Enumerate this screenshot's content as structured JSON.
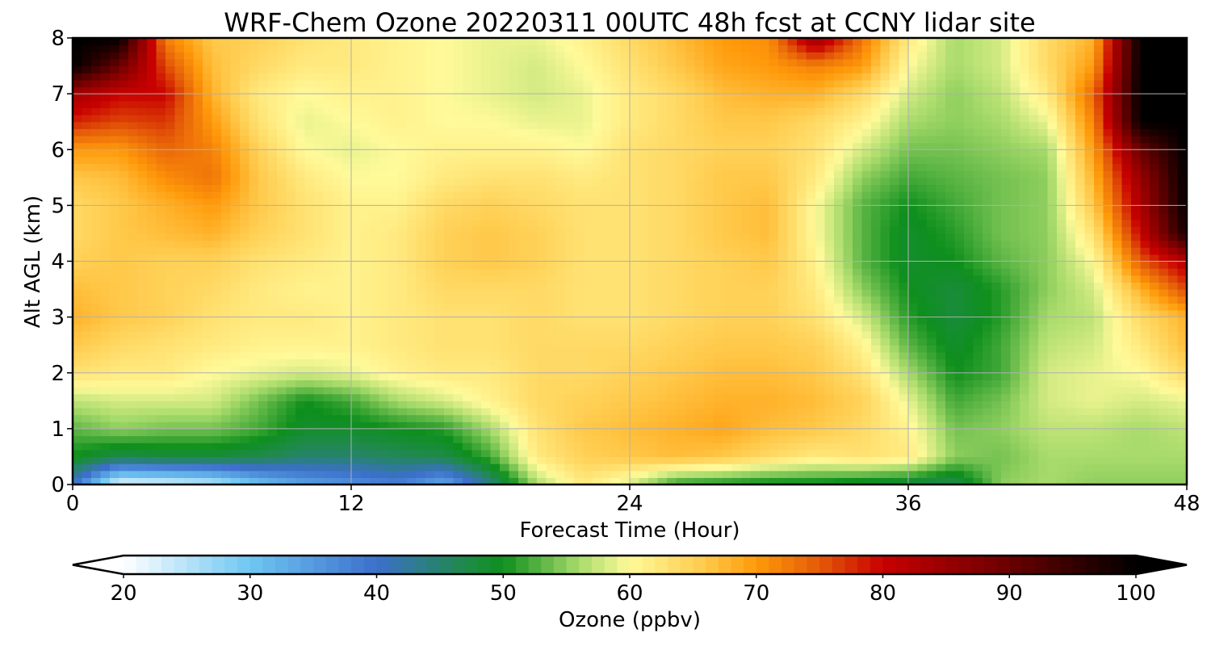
{
  "chart_data": {
    "type": "heatmap",
    "title": "WRF-Chem Ozone  20220311 00UTC 48h fcst at CCNY lidar site",
    "xlabel": "Forecast Time (Hour)",
    "ylabel": "Alt AGL (km)",
    "xlim": [
      0,
      48
    ],
    "ylim": [
      0,
      8
    ],
    "xticks": [
      0,
      12,
      24,
      36,
      48
    ],
    "yticks": [
      0,
      1,
      2,
      3,
      4,
      5,
      6,
      7,
      8
    ],
    "grid": true,
    "colorbar": {
      "label": "Ozone  (ppbv)",
      "min": 20,
      "max": 100,
      "ticks": [
        20,
        30,
        40,
        50,
        60,
        70,
        80,
        90,
        100
      ],
      "extend": "both",
      "stops": [
        {
          "value": 20,
          "color": "#ffffff"
        },
        {
          "value": 30,
          "color": "#6ec6f2"
        },
        {
          "value": 40,
          "color": "#3c6fcc"
        },
        {
          "value": 47,
          "color": "#1f8a4a"
        },
        {
          "value": 50,
          "color": "#0e8f1d"
        },
        {
          "value": 56,
          "color": "#a8db6b"
        },
        {
          "value": 60,
          "color": "#fffa9a"
        },
        {
          "value": 66,
          "color": "#ffc94a"
        },
        {
          "value": 70,
          "color": "#ff9a0a"
        },
        {
          "value": 75,
          "color": "#e45a08"
        },
        {
          "value": 80,
          "color": "#c80000"
        },
        {
          "value": 90,
          "color": "#6a0000"
        },
        {
          "value": 100,
          "color": "#000000"
        }
      ]
    },
    "x": [
      0,
      2,
      4,
      6,
      8,
      10,
      12,
      14,
      16,
      18,
      20,
      22,
      24,
      26,
      28,
      30,
      32,
      34,
      36,
      38,
      40,
      42,
      44,
      46,
      48
    ],
    "y": [
      0,
      0.5,
      1,
      1.5,
      2,
      2.5,
      3,
      3.5,
      4,
      4.5,
      5,
      5.5,
      6,
      6.5,
      7,
      7.5,
      8
    ],
    "z": [
      [
        40,
        21,
        22,
        24,
        30,
        34,
        36,
        38,
        33,
        44,
        56,
        62,
        58,
        51,
        50,
        49,
        49,
        48,
        47,
        46,
        55,
        56,
        55,
        55,
        55
      ],
      [
        50,
        47,
        48,
        48,
        47,
        45,
        45,
        46,
        47,
        52,
        62,
        65,
        66,
        67,
        66,
        64,
        62,
        63,
        62,
        55,
        54,
        56,
        56,
        56,
        56
      ],
      [
        53,
        55,
        54,
        54,
        52,
        49,
        49,
        50,
        51,
        56,
        63,
        66,
        67,
        68,
        69,
        67,
        66,
        64,
        61,
        54,
        55,
        57,
        57,
        56,
        57
      ],
      [
        57,
        58,
        58,
        58,
        54,
        50,
        52,
        56,
        58,
        61,
        64,
        65,
        66,
        67,
        68,
        68,
        67,
        65,
        59,
        52,
        54,
        58,
        59,
        58,
        59
      ],
      [
        63,
        62,
        62,
        60,
        59,
        58,
        59,
        61,
        62,
        62,
        64,
        64,
        65,
        66,
        67,
        67,
        66,
        63,
        56,
        50,
        52,
        58,
        59,
        60,
        64
      ],
      [
        66,
        64,
        63,
        62,
        61,
        61,
        61,
        62,
        63,
        63,
        64,
        64,
        64,
        65,
        66,
        66,
        65,
        61,
        53,
        49,
        52,
        57,
        58,
        62,
        67
      ],
      [
        68,
        66,
        65,
        63,
        62,
        62,
        61,
        62,
        63,
        63,
        64,
        63,
        63,
        64,
        65,
        65,
        63,
        58,
        51,
        48,
        51,
        56,
        57,
        64,
        68
      ],
      [
        67,
        66,
        65,
        64,
        62,
        61,
        61,
        62,
        64,
        64,
        64,
        63,
        63,
        64,
        65,
        65,
        62,
        55,
        50,
        48,
        51,
        55,
        58,
        68,
        76
      ],
      [
        65,
        66,
        65,
        65,
        63,
        62,
        61,
        62,
        65,
        66,
        65,
        63,
        63,
        64,
        65,
        66,
        61,
        53,
        49,
        50,
        53,
        55,
        60,
        75,
        82
      ],
      [
        64,
        66,
        67,
        68,
        65,
        63,
        61,
        62,
        65,
        66,
        65,
        63,
        63,
        64,
        66,
        67,
        60,
        53,
        49,
        51,
        54,
        55,
        63,
        80,
        98
      ],
      [
        64,
        66,
        68,
        70,
        66,
        63,
        61,
        61,
        64,
        65,
        64,
        63,
        63,
        64,
        66,
        67,
        60,
        53,
        50,
        52,
        54,
        55,
        66,
        83,
        100
      ],
      [
        66,
        67,
        71,
        73,
        66,
        62,
        60,
        60,
        62,
        63,
        63,
        62,
        63,
        64,
        66,
        66,
        62,
        55,
        52,
        53,
        54,
        55,
        68,
        85,
        100
      ],
      [
        70,
        70,
        74,
        72,
        65,
        60,
        59,
        60,
        61,
        61,
        61,
        60,
        63,
        64,
        65,
        65,
        63,
        58,
        54,
        54,
        55,
        56,
        70,
        90,
        100
      ],
      [
        78,
        76,
        77,
        70,
        63,
        59,
        60,
        61,
        60,
        60,
        59,
        59,
        62,
        64,
        66,
        66,
        64,
        61,
        56,
        55,
        56,
        59,
        72,
        100,
        100
      ],
      [
        84,
        80,
        80,
        68,
        62,
        60,
        61,
        61,
        60,
        59,
        58,
        59,
        62,
        64,
        67,
        68,
        68,
        64,
        58,
        55,
        57,
        62,
        74,
        100,
        100
      ],
      [
        100,
        90,
        76,
        67,
        64,
        62,
        62,
        61,
        60,
        59,
        58,
        60,
        63,
        66,
        69,
        70,
        72,
        70,
        60,
        56,
        58,
        64,
        70,
        100,
        100
      ],
      [
        100,
        100,
        72,
        66,
        65,
        63,
        62,
        61,
        60,
        59,
        59,
        61,
        64,
        67,
        70,
        71,
        85,
        73,
        62,
        56,
        58,
        64,
        68,
        100,
        100
      ]
    ]
  }
}
